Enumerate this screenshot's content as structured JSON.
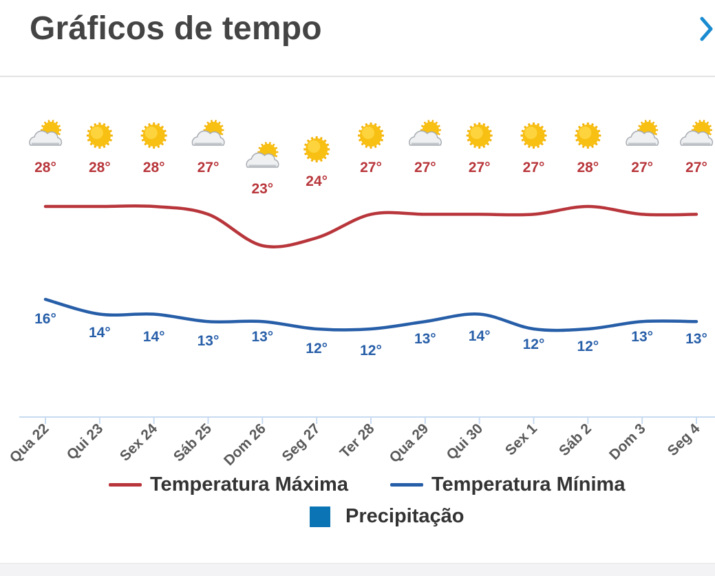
{
  "header": {
    "title": "Gráficos de tempo",
    "next_icon": "chevron-right-icon"
  },
  "colors": {
    "max": "#b8363b",
    "min": "#275ea8",
    "precip": "#0b74b4",
    "axis": "#c7daf0",
    "label": "#595959"
  },
  "chart_data": {
    "type": "line",
    "x_axis_label": "",
    "y_axis_label": "",
    "x_unit": "date",
    "y_unit": "°C",
    "categories": [
      "Qua 22",
      "Qui 23",
      "Sex 24",
      "Sáb 25",
      "Dom 26",
      "Seg 27",
      "Ter 28",
      "Qua 29",
      "Qui 30",
      "Sex 1",
      "Sáb 2",
      "Dom 3",
      "Seg 4"
    ],
    "series": [
      {
        "name": "Temperatura Máxima",
        "values": [
          28,
          28,
          28,
          27,
          23,
          24,
          27,
          27,
          27,
          27,
          28,
          27,
          27
        ],
        "labels": [
          "28°",
          "28°",
          "28°",
          "27°",
          "23°",
          "24°",
          "27°",
          "27°",
          "27°",
          "27°",
          "28°",
          "27°",
          "27°"
        ]
      },
      {
        "name": "Temperatura Mínima",
        "values": [
          16,
          14,
          14,
          13,
          13,
          12,
          12,
          13,
          14,
          12,
          12,
          13,
          13
        ],
        "labels": [
          "16°",
          "14°",
          "14°",
          "13°",
          "13°",
          "12°",
          "12°",
          "13°",
          "14°",
          "12°",
          "12°",
          "13°",
          "13°"
        ]
      },
      {
        "name": "Precipitação",
        "values": [
          0,
          0,
          0,
          0,
          0,
          0,
          0,
          0,
          0,
          0,
          0,
          0,
          0
        ]
      }
    ],
    "icons": [
      "partly-cloudy-icon",
      "sun-icon",
      "sun-icon",
      "partly-cloudy-icon",
      "partly-cloudy-icon",
      "sun-icon",
      "sun-icon",
      "partly-cloudy-icon",
      "sun-icon",
      "sun-icon",
      "sun-icon",
      "partly-cloudy-icon",
      "partly-cloudy-icon"
    ],
    "grid": false,
    "legend_position": "bottom"
  },
  "legend": [
    {
      "label": "Temperatura Máxima"
    },
    {
      "label": "Temperatura Mínima"
    },
    {
      "label": "Precipitação"
    }
  ]
}
